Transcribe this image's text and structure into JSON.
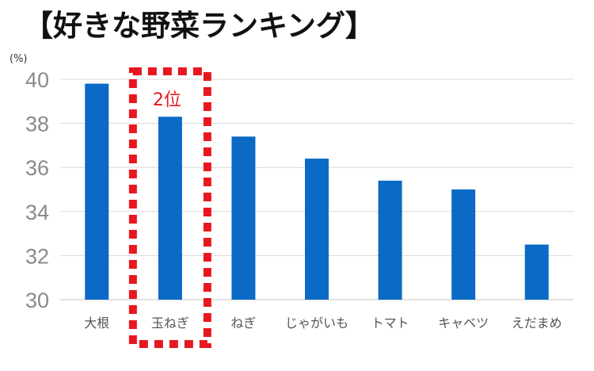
{
  "chart_data": {
    "type": "bar",
    "title": "【好きな野菜ランキング】",
    "unit": "(%)",
    "categories": [
      "大根",
      "玉ねぎ",
      "ねぎ",
      "じゃがいも",
      "トマト",
      "キャベツ",
      "えだまめ"
    ],
    "values": [
      39.8,
      38.3,
      37.4,
      36.4,
      35.4,
      35.0,
      32.5
    ],
    "ylim": [
      30,
      40
    ],
    "yticks": [
      "30",
      "32",
      "34",
      "36",
      "38",
      "40"
    ],
    "grid": true,
    "colors": {
      "bar": "#0a6ac5",
      "highlight": "#e8171f",
      "grid": "#d9d9d9"
    },
    "annotation": {
      "text": "2位",
      "category": "玉ねぎ"
    }
  }
}
